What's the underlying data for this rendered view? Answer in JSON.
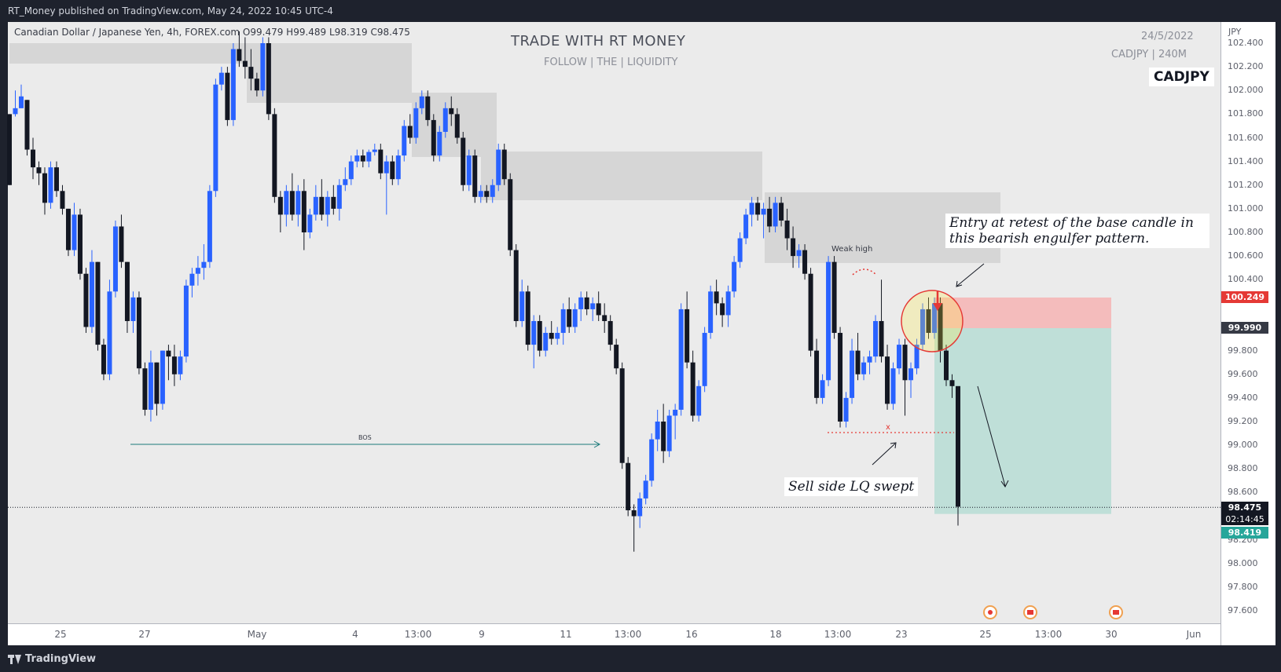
{
  "publisher_line": "RT_Money published on TradingView.com, May 24, 2022 10:45 UTC-4",
  "legend": {
    "symbol_desc": "Canadian Dollar / Japanese Yen, 4h, FOREX.com",
    "ohlc": "O99.479  H99.489  L98.319  C98.475"
  },
  "watermark": {
    "title": "TRADE WITH RT MONEY",
    "subtitle": "FOLLOW  | THE |  LIQUIDITY",
    "date": "24/5/2022",
    "symbol_tf": "CADJPY | 240M",
    "badge": "CADJPY"
  },
  "annotations": {
    "entry_note": "Entry at retest of the base candle in this bearish engulfer pattern.",
    "sweep_note": "Sell side LQ swept",
    "weak_high": "Weak high",
    "bos": "BOS",
    "sweep_mark": "x"
  },
  "footer": {
    "brand": "TradingView"
  },
  "price_tags": {
    "stop": "100.249",
    "entry": "99.990",
    "current": "98.475",
    "countdown": "02:14:45",
    "target": "98.419"
  },
  "axis": {
    "unit": "JPY",
    "y_ticks": [
      "102.400",
      "102.200",
      "102.000",
      "101.800",
      "101.600",
      "101.400",
      "101.200",
      "101.000",
      "100.800",
      "100.600",
      "100.400",
      "99.800",
      "99.600",
      "99.400",
      "99.200",
      "99.000",
      "98.800",
      "98.600",
      "98.200",
      "98.000",
      "97.800",
      "97.600"
    ],
    "x_ticks": [
      "25",
      "27",
      "May",
      "4",
      "13:00",
      "9",
      "11",
      "13:00",
      "16",
      "18",
      "13:00",
      "23",
      "25",
      "13:00",
      "30",
      "Jun"
    ]
  },
  "colors": {
    "bull": "#2962ff",
    "bear": "#131722",
    "zone": "#d6d6d6",
    "stop_zone": "#f4bcbc",
    "target_zone": "#bfdfd8"
  },
  "chart_data": {
    "type": "candlestick",
    "symbol": "CADJPY",
    "interval": "4h",
    "ylim": [
      97.6,
      102.5
    ],
    "candles": [
      [
        101.8,
        101.8,
        101.2,
        101.2
      ],
      [
        101.8,
        102.0,
        101.78,
        101.85
      ],
      [
        101.85,
        102.05,
        101.85,
        101.95
      ],
      [
        101.92,
        101.92,
        101.45,
        101.5
      ],
      [
        101.5,
        101.6,
        101.25,
        101.35
      ],
      [
        101.35,
        101.4,
        101.2,
        101.3
      ],
      [
        101.3,
        101.35,
        100.95,
        101.05
      ],
      [
        101.05,
        101.4,
        101.0,
        101.35
      ],
      [
        101.35,
        101.4,
        101.1,
        101.15
      ],
      [
        101.15,
        101.2,
        100.95,
        101.0
      ],
      [
        101.0,
        101.0,
        100.6,
        100.65
      ],
      [
        100.65,
        101.05,
        100.6,
        100.95
      ],
      [
        100.95,
        101.0,
        100.4,
        100.45
      ],
      [
        100.45,
        100.5,
        99.95,
        100.0
      ],
      [
        100.0,
        100.65,
        99.95,
        100.55
      ],
      [
        100.55,
        100.55,
        99.8,
        99.85
      ],
      [
        99.85,
        99.9,
        99.55,
        99.6
      ],
      [
        99.6,
        100.4,
        99.55,
        100.3
      ],
      [
        100.3,
        100.9,
        100.25,
        100.85
      ],
      [
        100.85,
        100.95,
        100.5,
        100.55
      ],
      [
        100.55,
        100.55,
        99.95,
        100.05
      ],
      [
        100.05,
        100.3,
        99.95,
        100.25
      ],
      [
        100.25,
        100.3,
        99.6,
        99.65
      ],
      [
        99.65,
        99.7,
        99.25,
        99.3
      ],
      [
        99.3,
        99.8,
        99.2,
        99.7
      ],
      [
        99.7,
        99.7,
        99.25,
        99.35
      ],
      [
        99.35,
        99.8,
        99.3,
        99.8
      ],
      [
        99.8,
        99.85,
        99.55,
        99.75
      ],
      [
        99.75,
        99.85,
        99.5,
        99.6
      ],
      [
        99.6,
        99.8,
        99.55,
        99.75
      ],
      [
        99.75,
        100.4,
        99.7,
        100.35
      ],
      [
        100.35,
        100.5,
        100.25,
        100.45
      ],
      [
        100.45,
        100.6,
        100.35,
        100.5
      ],
      [
        100.5,
        100.7,
        100.4,
        100.55
      ],
      [
        100.55,
        101.2,
        100.5,
        101.15
      ],
      [
        101.15,
        102.1,
        101.1,
        102.05
      ],
      [
        102.05,
        102.2,
        102.0,
        102.15
      ],
      [
        102.15,
        102.2,
        101.7,
        101.75
      ],
      [
        101.75,
        102.4,
        101.7,
        102.35
      ],
      [
        102.35,
        102.5,
        102.2,
        102.25
      ],
      [
        102.25,
        102.45,
        102.1,
        102.2
      ],
      [
        102.2,
        102.35,
        102.0,
        102.1
      ],
      [
        102.1,
        102.15,
        101.95,
        102.0
      ],
      [
        102.0,
        102.45,
        101.95,
        102.4
      ],
      [
        102.4,
        102.45,
        101.75,
        101.8
      ],
      [
        101.8,
        101.85,
        101.05,
        101.1
      ],
      [
        101.1,
        101.15,
        100.8,
        100.95
      ],
      [
        100.95,
        101.2,
        100.85,
        101.15
      ],
      [
        101.15,
        101.3,
        100.9,
        100.95
      ],
      [
        100.95,
        101.2,
        100.85,
        101.15
      ],
      [
        101.15,
        101.25,
        100.65,
        100.8
      ],
      [
        100.8,
        101.0,
        100.75,
        100.95
      ],
      [
        100.95,
        101.2,
        100.9,
        101.1
      ],
      [
        101.1,
        101.25,
        100.9,
        100.95
      ],
      [
        100.95,
        101.15,
        100.85,
        101.1
      ],
      [
        101.1,
        101.2,
        100.95,
        101.0
      ],
      [
        101.0,
        101.25,
        100.9,
        101.2
      ],
      [
        101.2,
        101.35,
        101.15,
        101.25
      ],
      [
        101.25,
        101.45,
        101.2,
        101.4
      ],
      [
        101.4,
        101.5,
        101.35,
        101.45
      ],
      [
        101.45,
        101.5,
        101.35,
        101.4
      ],
      [
        101.4,
        101.5,
        101.35,
        101.48
      ],
      [
        101.48,
        101.55,
        101.45,
        101.5
      ],
      [
        101.5,
        101.55,
        101.25,
        101.3
      ],
      [
        101.3,
        101.45,
        100.95,
        101.4
      ],
      [
        101.4,
        101.45,
        101.2,
        101.25
      ],
      [
        101.25,
        101.5,
        101.2,
        101.45
      ],
      [
        101.45,
        101.75,
        101.4,
        101.7
      ],
      [
        101.7,
        101.8,
        101.55,
        101.6
      ],
      [
        101.6,
        101.9,
        101.55,
        101.85
      ],
      [
        101.85,
        102.0,
        101.8,
        101.95
      ],
      [
        101.95,
        102.0,
        101.7,
        101.75
      ],
      [
        101.75,
        101.8,
        101.4,
        101.45
      ],
      [
        101.45,
        101.7,
        101.4,
        101.65
      ],
      [
        101.65,
        101.9,
        101.6,
        101.85
      ],
      [
        101.85,
        101.95,
        101.7,
        101.8
      ],
      [
        101.8,
        101.85,
        101.55,
        101.6
      ],
      [
        101.6,
        101.65,
        101.15,
        101.2
      ],
      [
        101.2,
        101.5,
        101.15,
        101.45
      ],
      [
        101.45,
        101.5,
        101.05,
        101.1
      ],
      [
        101.1,
        101.2,
        101.05,
        101.15
      ],
      [
        101.15,
        101.2,
        101.05,
        101.1
      ],
      [
        101.1,
        101.25,
        101.05,
        101.2
      ],
      [
        101.2,
        101.55,
        101.15,
        101.5
      ],
      [
        101.5,
        101.55,
        101.2,
        101.25
      ],
      [
        101.25,
        101.3,
        100.6,
        100.65
      ],
      [
        100.65,
        100.7,
        100.0,
        100.05
      ],
      [
        100.05,
        100.4,
        100.0,
        100.3
      ],
      [
        100.3,
        100.35,
        99.8,
        99.85
      ],
      [
        99.85,
        100.1,
        99.65,
        100.05
      ],
      [
        100.05,
        100.1,
        99.75,
        99.8
      ],
      [
        99.8,
        100.0,
        99.75,
        99.95
      ],
      [
        99.95,
        100.05,
        99.85,
        99.9
      ],
      [
        99.9,
        100.0,
        99.85,
        99.95
      ],
      [
        99.95,
        100.2,
        99.85,
        100.15
      ],
      [
        100.15,
        100.25,
        99.95,
        100.0
      ],
      [
        100.0,
        100.2,
        99.95,
        100.15
      ],
      [
        100.15,
        100.3,
        100.05,
        100.25
      ],
      [
        100.25,
        100.3,
        100.1,
        100.15
      ],
      [
        100.15,
        100.25,
        100.05,
        100.2
      ],
      [
        100.2,
        100.3,
        100.05,
        100.1
      ],
      [
        100.1,
        100.2,
        99.95,
        100.05
      ],
      [
        100.05,
        100.1,
        99.8,
        99.85
      ],
      [
        99.85,
        99.9,
        99.6,
        99.65
      ],
      [
        99.65,
        99.7,
        98.8,
        98.85
      ],
      [
        98.85,
        98.9,
        98.4,
        98.45
      ],
      [
        98.45,
        98.5,
        98.1,
        98.4
      ],
      [
        98.4,
        98.6,
        98.3,
        98.55
      ],
      [
        98.55,
        98.75,
        98.5,
        98.7
      ],
      [
        98.7,
        99.1,
        98.65,
        99.05
      ],
      [
        99.05,
        99.3,
        98.95,
        99.2
      ],
      [
        99.2,
        99.35,
        98.85,
        98.95
      ],
      [
        98.95,
        99.3,
        98.9,
        99.25
      ],
      [
        99.25,
        99.35,
        99.05,
        99.3
      ],
      [
        99.3,
        100.2,
        99.25,
        100.15
      ],
      [
        100.15,
        100.3,
        99.65,
        99.7
      ],
      [
        99.7,
        99.8,
        99.2,
        99.25
      ],
      [
        99.25,
        99.55,
        99.2,
        99.5
      ],
      [
        99.5,
        100.0,
        99.45,
        99.95
      ],
      [
        99.95,
        100.35,
        99.9,
        100.3
      ],
      [
        100.3,
        100.4,
        100.1,
        100.2
      ],
      [
        100.2,
        100.25,
        100.0,
        100.1
      ],
      [
        100.1,
        100.35,
        100.0,
        100.3
      ],
      [
        100.3,
        100.6,
        100.25,
        100.55
      ],
      [
        100.55,
        100.8,
        100.5,
        100.75
      ],
      [
        100.75,
        101.0,
        100.7,
        100.95
      ],
      [
        100.95,
        101.1,
        100.85,
        101.05
      ],
      [
        101.05,
        101.1,
        100.9,
        100.95
      ],
      [
        100.95,
        101.05,
        100.75,
        101.0
      ],
      [
        101.0,
        101.1,
        100.8,
        100.85
      ],
      [
        100.85,
        101.1,
        100.8,
        101.05
      ],
      [
        101.05,
        101.1,
        100.85,
        100.9
      ],
      [
        100.9,
        101.0,
        100.65,
        100.75
      ],
      [
        100.75,
        100.85,
        100.5,
        100.6
      ],
      [
        100.6,
        100.7,
        100.5,
        100.65
      ],
      [
        100.65,
        100.7,
        100.4,
        100.45
      ],
      [
        100.45,
        100.5,
        99.75,
        99.8
      ],
      [
        99.8,
        99.9,
        99.35,
        99.4
      ],
      [
        99.4,
        99.6,
        99.35,
        99.55
      ],
      [
        99.55,
        100.6,
        99.5,
        100.55
      ],
      [
        100.55,
        100.6,
        99.9,
        99.95
      ],
      [
        99.95,
        100.0,
        99.15,
        99.2
      ],
      [
        99.2,
        99.45,
        99.15,
        99.4
      ],
      [
        99.4,
        99.9,
        99.35,
        99.8
      ],
      [
        99.8,
        99.95,
        99.55,
        99.6
      ],
      [
        99.6,
        99.75,
        99.55,
        99.7
      ],
      [
        99.7,
        99.8,
        99.6,
        99.75
      ],
      [
        99.75,
        100.1,
        99.7,
        100.05
      ],
      [
        100.05,
        100.4,
        99.7,
        99.75
      ],
      [
        99.75,
        99.85,
        99.3,
        99.35
      ],
      [
        99.35,
        99.7,
        99.3,
        99.65
      ],
      [
        99.65,
        99.9,
        99.6,
        99.85
      ],
      [
        99.85,
        99.9,
        99.25,
        99.55
      ],
      [
        99.55,
        99.7,
        99.4,
        99.65
      ],
      [
        99.65,
        99.9,
        99.6,
        99.85
      ],
      [
        99.85,
        100.2,
        99.8,
        100.15
      ],
      [
        100.15,
        100.25,
        99.9,
        99.95
      ],
      [
        99.95,
        100.25,
        99.9,
        100.2
      ],
      [
        100.2,
        100.25,
        99.7,
        99.8
      ],
      [
        99.8,
        99.85,
        99.5,
        99.55
      ],
      [
        99.55,
        99.6,
        99.4,
        99.5
      ],
      [
        99.5,
        99.49,
        98.32,
        98.48
      ]
    ]
  }
}
